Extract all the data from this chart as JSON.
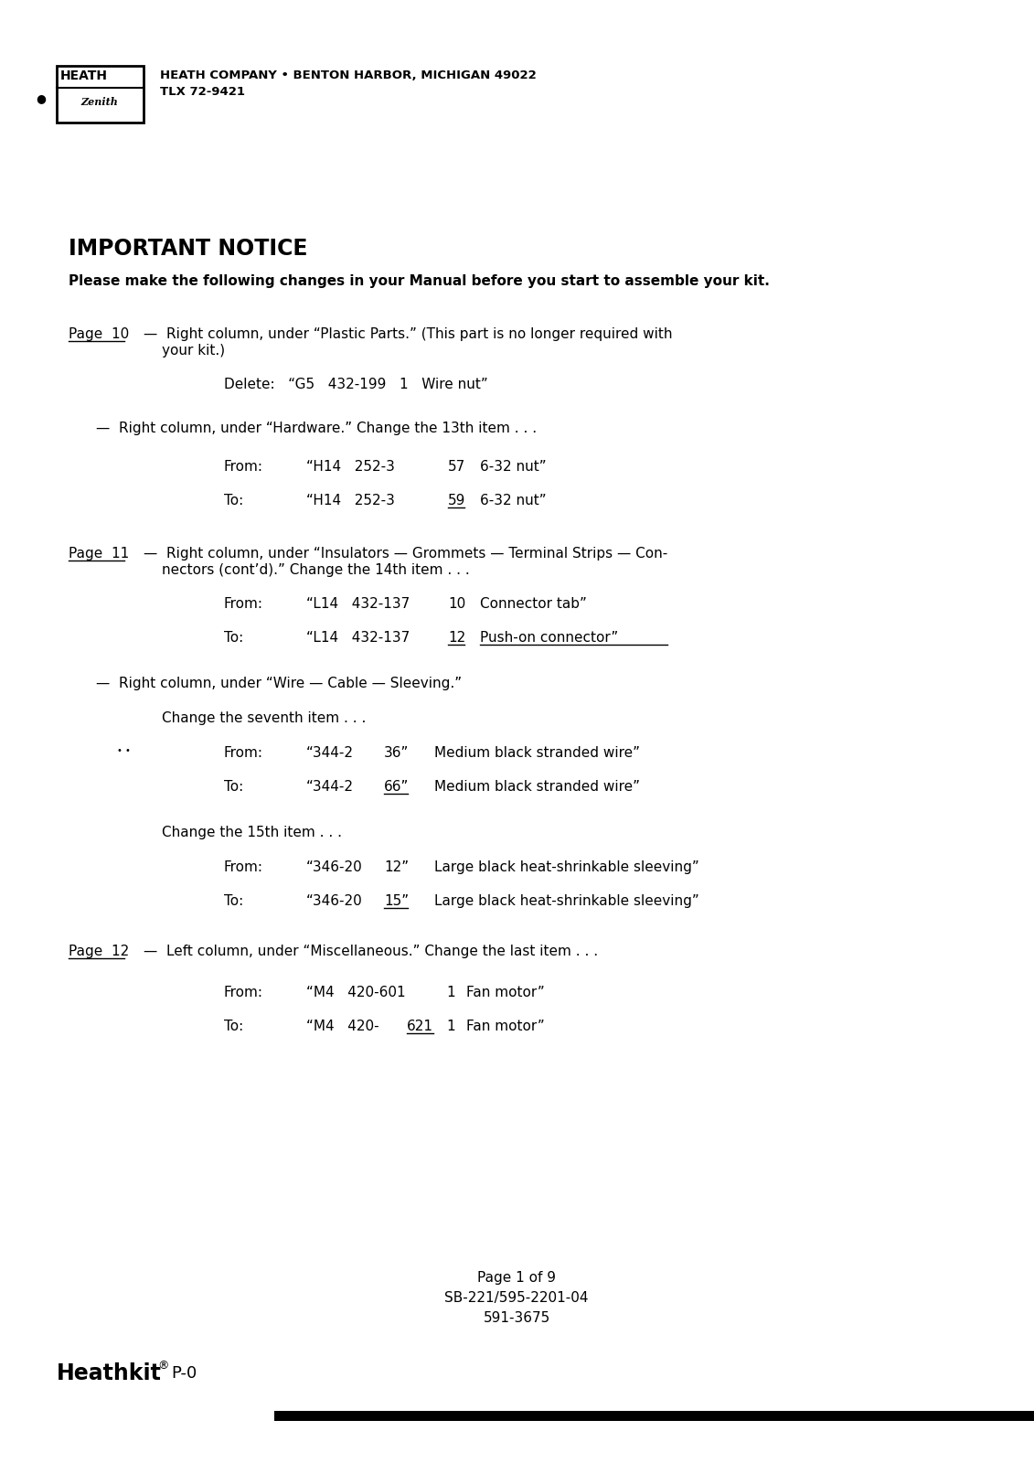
{
  "bg_color": "#ffffff",
  "text_color": "#000000",
  "title": "IMPORTANT NOTICE",
  "intro": "Please make the following changes in your Manual before you start to assemble your kit.",
  "footer_lines": [
    "Page 1 of 9",
    "SB-221/595-2201-04",
    "591-3675"
  ],
  "header_company_line1": "HEATH COMPANY • BENTON HARBOR, MICHIGAN 49022",
  "header_company_line2": "TLX 72-9421"
}
